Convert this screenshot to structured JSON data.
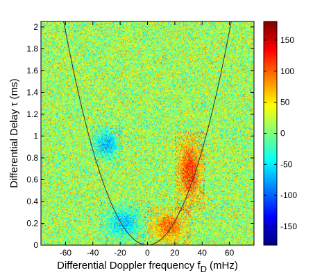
{
  "chart_data": {
    "type": "heatmap",
    "title": "",
    "xlabel": "Differential Doppler frequency f",
    "xlabel_subscript": "D",
    "xlabel_unit": "(mHz)",
    "ylabel": "Differential Delay τ (ms)",
    "xlim": [
      -78,
      78
    ],
    "ylim": [
      0,
      2.05
    ],
    "xticks": [
      -60,
      -40,
      -20,
      0,
      20,
      40,
      60
    ],
    "yticks": [
      0,
      0.2,
      0.4,
      0.6,
      0.8,
      1,
      1.2,
      1.4,
      1.6,
      1.8,
      2
    ],
    "colorbar": {
      "range": [
        -180,
        180
      ],
      "ticks": [
        -150,
        -100,
        -50,
        0,
        50,
        100,
        150
      ],
      "colormap": "jet"
    },
    "background_level": 15,
    "features": [
      {
        "name": "right arc band",
        "value": 120,
        "f_range": [
          20,
          42
        ],
        "tau_range": [
          0.3,
          1.05
        ]
      },
      {
        "name": "left arc band",
        "value": -70,
        "f_range": [
          -42,
          -18
        ],
        "tau_range": [
          0.75,
          1.1
        ]
      },
      {
        "name": "lower right blob",
        "value": 100,
        "f_range": [
          0,
          32
        ],
        "tau_range": [
          0,
          0.35
        ]
      },
      {
        "name": "lower left blob",
        "value": -60,
        "f_range": [
          -35,
          0
        ],
        "tau_range": [
          0,
          0.4
        ]
      }
    ],
    "curve": {
      "type": "parabola",
      "equation": "tau = 0.000545 * f^2",
      "color": "#333333"
    },
    "grid": false
  }
}
